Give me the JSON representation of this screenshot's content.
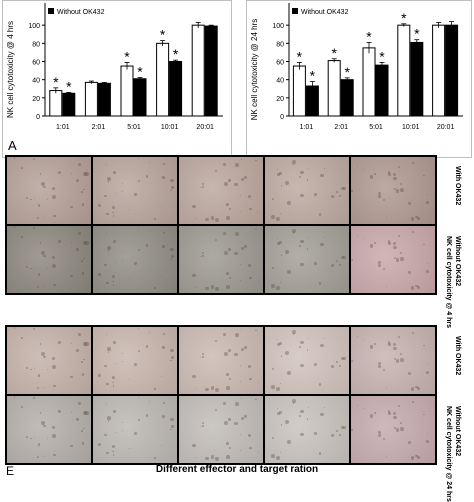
{
  "chart_data": [
    {
      "type": "bar",
      "categories": [
        "1:01",
        "2:01",
        "5:01",
        "10:01",
        "20:01"
      ],
      "series": [
        {
          "name": "",
          "color": "#ffffff",
          "values": [
            28,
            37,
            55,
            80,
            100
          ],
          "errors": [
            3,
            1.5,
            4,
            3,
            3
          ]
        },
        {
          "name": "Without OK432",
          "color": "#000000",
          "values": [
            25,
            36,
            41,
            60,
            99
          ],
          "errors": [
            1,
            1,
            1.5,
            1.5,
            1
          ]
        }
      ],
      "significance": [
        [
          true,
          true
        ],
        [
          false,
          false
        ],
        [
          true,
          true
        ],
        [
          true,
          true
        ],
        [
          false,
          false
        ]
      ],
      "ylabel": "NK cell cytotoxicity @ 4 hrs",
      "ylim": [
        0,
        120
      ],
      "yticks": [
        "0",
        "20",
        "40",
        "60",
        "80",
        "100"
      ],
      "legend": "top-left",
      "grid": false
    },
    {
      "type": "bar",
      "categories": [
        "1:01",
        "2:01",
        "5:01",
        "10:01",
        "20:01"
      ],
      "series": [
        {
          "name": "",
          "color": "#ffffff",
          "values": [
            55,
            61,
            75,
            100,
            100
          ],
          "errors": [
            4,
            2,
            6,
            1.5,
            3
          ]
        },
        {
          "name": "Without OK432",
          "color": "#000000",
          "values": [
            33,
            40,
            56,
            81,
            100
          ],
          "errors": [
            5,
            2,
            3,
            3,
            4
          ]
        }
      ],
      "significance": [
        [
          true,
          true
        ],
        [
          true,
          true
        ],
        [
          true,
          true
        ],
        [
          true,
          true
        ],
        [
          false,
          false
        ]
      ],
      "ylabel": "NK cell cytotoxicity @ 24 hrs",
      "ylim": [
        0,
        120
      ],
      "yticks": [
        "0",
        "20",
        "40",
        "60",
        "80",
        "100"
      ],
      "legend": "top-left",
      "grid": false
    }
  ],
  "labels": {
    "panel_a": "A",
    "panel_e": "E",
    "star": "*",
    "row_with_4h": "With OK432",
    "row_without_4h": "Without OK432",
    "row_without_4h_sub": "NK cell cytotoxicity @ 4 hrs",
    "row_with_24h": "With OK432",
    "row_without_24h": "Without OK432",
    "row_without_24h_sub": "NK cell cytotoxicity @ 24 hrs",
    "bottom_caption": "Different effector and target ration"
  },
  "photo_colors": {
    "row1": [
      "#b39f96",
      "#b6a39a",
      "#baa69c",
      "#bba89f",
      "#ad978e"
    ],
    "row2": [
      "#8a857c",
      "#8f8b83",
      "#9b978f",
      "#a19d95",
      "#c7a6a8"
    ],
    "row3": [
      "#c2b0a7",
      "#c6b4ab",
      "#c9b8b0",
      "#d0c1bb",
      "#c5b1ad"
    ],
    "row4": [
      "#b2ada7",
      "#bab6b1",
      "#c0bbb6",
      "#c6c1bb",
      "#c4a9ae"
    ]
  }
}
